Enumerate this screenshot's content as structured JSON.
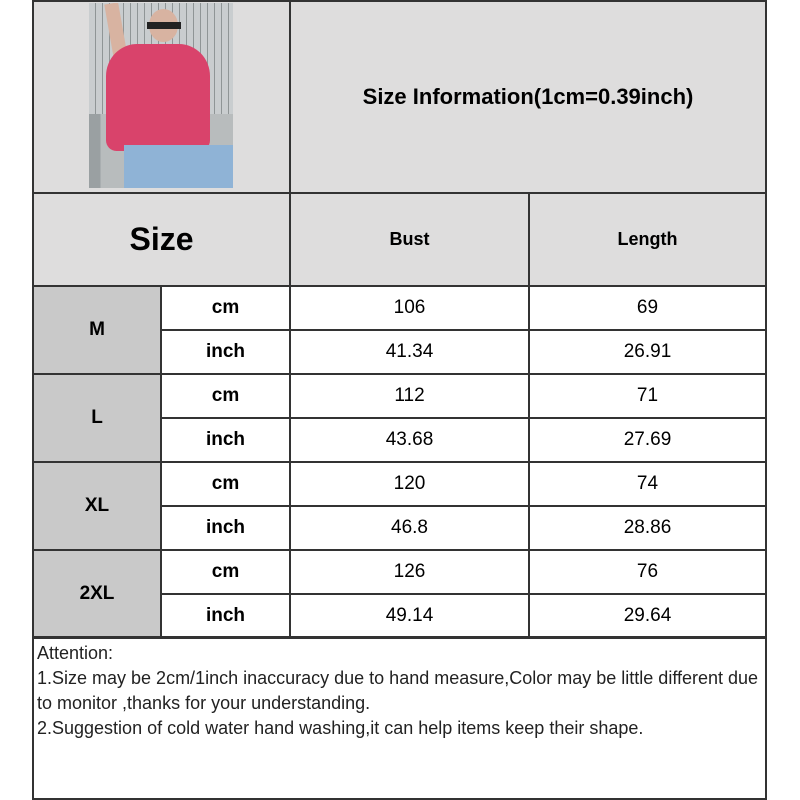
{
  "title": "Size Information(1cm=0.39inch)",
  "header": {
    "size": "Size",
    "bust": "Bust",
    "length": "Length"
  },
  "rows": [
    {
      "size": "M",
      "cm": {
        "unit": "cm",
        "bust": "106",
        "length": "69"
      },
      "inch": {
        "unit": "inch",
        "bust": "41.34",
        "length": "26.91"
      }
    },
    {
      "size": "L",
      "cm": {
        "unit": "cm",
        "bust": "112",
        "length": "71"
      },
      "inch": {
        "unit": "inch",
        "bust": "43.68",
        "length": "27.69"
      }
    },
    {
      "size": "XL",
      "cm": {
        "unit": "cm",
        "bust": "120",
        "length": "74"
      },
      "inch": {
        "unit": "inch",
        "bust": "46.8",
        "length": "28.86"
      }
    },
    {
      "size": "2XL",
      "cm": {
        "unit": "cm",
        "bust": "126",
        "length": "76"
      },
      "inch": {
        "unit": "inch",
        "bust": "49.14",
        "length": "29.64"
      }
    }
  ],
  "attention": {
    "heading": "Attention:",
    "line1": "1.Size may be 2cm/1inch inaccuracy due to hand measure,Color may be little different due to monitor ,thanks for your understanding.",
    "line2": "2.Suggestion of cold water hand washing,it can help items keep their shape."
  }
}
